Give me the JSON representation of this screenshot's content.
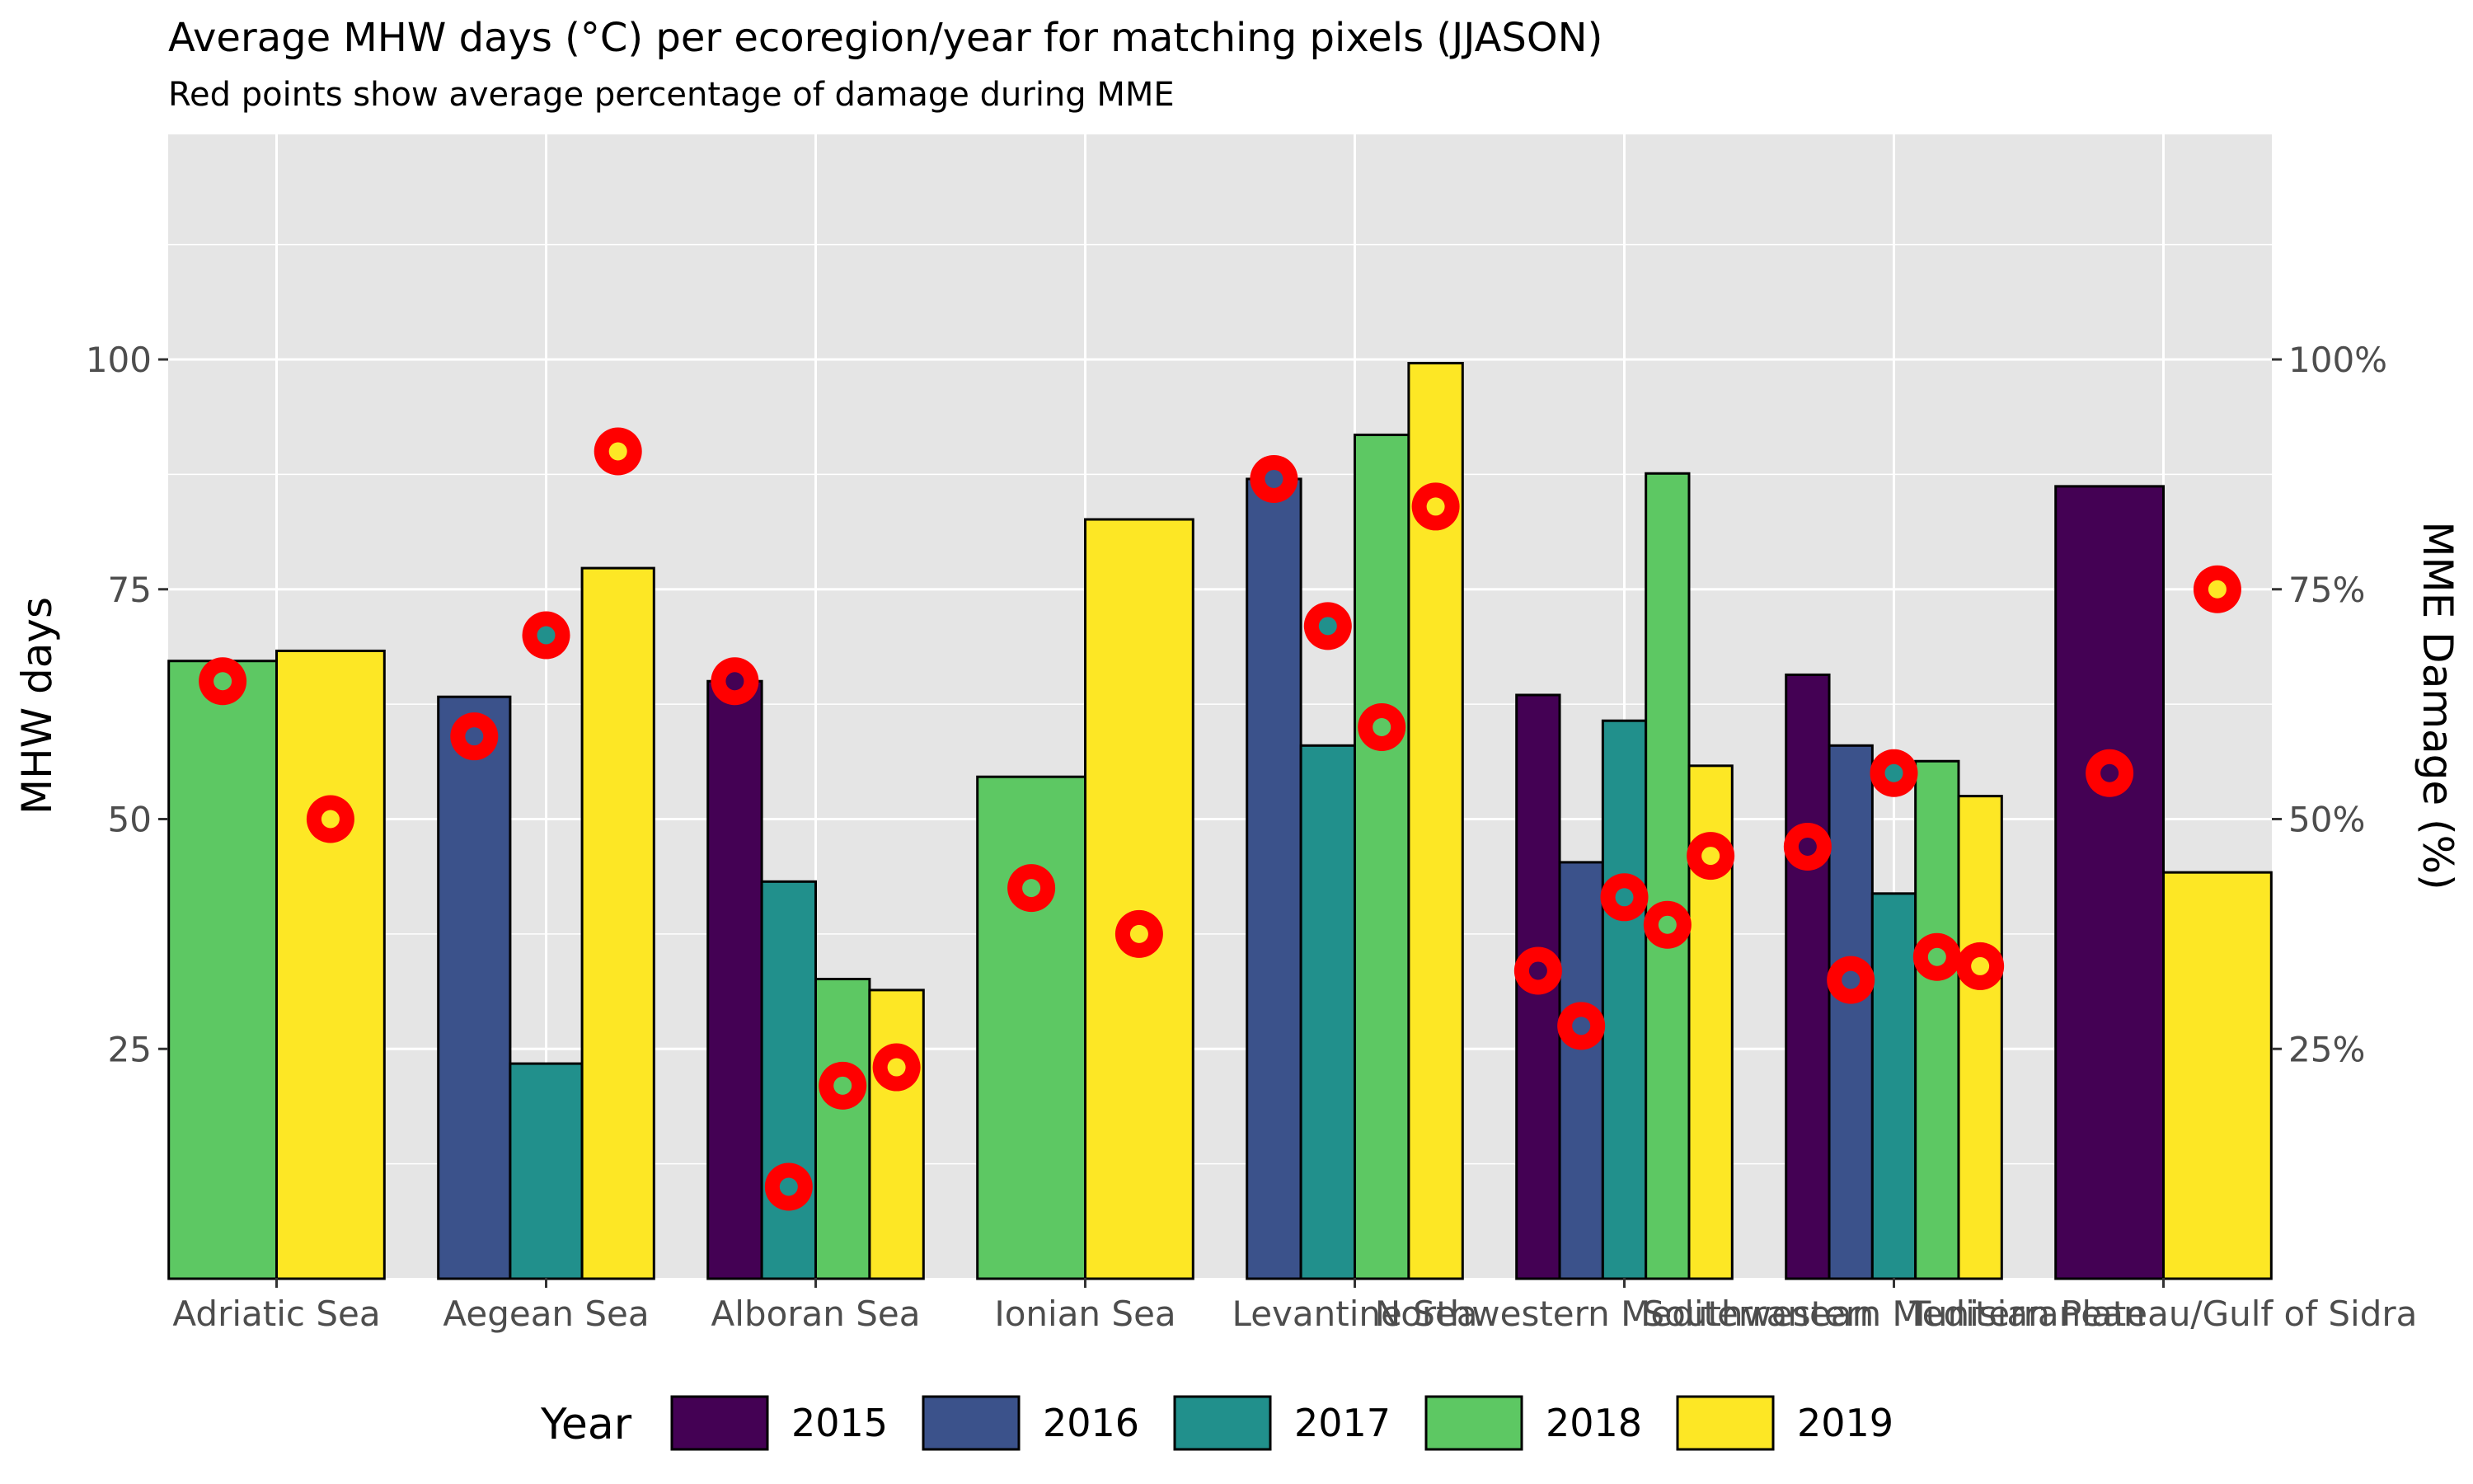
{
  "chart_data": {
    "type": "bar",
    "title": "Average MHW days (°C) per ecoregion/year for matching pixels (JJASON)",
    "subtitle": "Red points show average percentage of damage during MME",
    "ylabel": "MHW days",
    "y2label": "MME Damage (%)",
    "ylim": [
      0,
      125
    ],
    "y2lim": [
      0,
      1.25
    ],
    "yticks": [
      25,
      50,
      75,
      100
    ],
    "y2ticks": [
      "25%",
      "50%",
      "75%",
      "100%"
    ],
    "y2tick_values": [
      0.25,
      0.5,
      0.75,
      1.0
    ],
    "grid": true,
    "legend_position": "bottom",
    "legend_title": "Year",
    "years": [
      "2015",
      "2016",
      "2017",
      "2018",
      "2019"
    ],
    "colors": {
      "2015": "#440154",
      "2016": "#3B528B",
      "2017": "#21908C",
      "2018": "#5DC863",
      "2019": "#FDE725",
      "point_ring": "#FF0000",
      "panel": "#E5E5E5"
    },
    "categories": [
      {
        "name": "Adriatic Sea",
        "bars": [
          {
            "year": "2018",
            "value": 67.2,
            "damage": 0.65
          },
          {
            "year": "2019",
            "value": 68.3,
            "damage": 0.5
          }
        ]
      },
      {
        "name": "Aegean Sea",
        "bars": [
          {
            "year": "2016",
            "value": 63.3,
            "damage": 0.59
          },
          {
            "year": "2017",
            "value": 23.4,
            "damage": 0.7
          },
          {
            "year": "2019",
            "value": 77.3,
            "damage": 0.9
          }
        ]
      },
      {
        "name": "Alboran Sea",
        "bars": [
          {
            "year": "2015",
            "value": 65.0,
            "damage": 0.65
          },
          {
            "year": "2017",
            "value": 43.2,
            "damage": 0.1
          },
          {
            "year": "2018",
            "value": 32.6,
            "damage": 0.21
          },
          {
            "year": "2019",
            "value": 31.4,
            "damage": 0.23
          }
        ]
      },
      {
        "name": "Ionian Sea",
        "bars": [
          {
            "year": "2018",
            "value": 54.6,
            "damage": 0.425
          },
          {
            "year": "2019",
            "value": 82.6,
            "damage": 0.375
          }
        ]
      },
      {
        "name": "Levantine Sea",
        "bars": [
          {
            "year": "2016",
            "value": 87.0,
            "damage": 0.87
          },
          {
            "year": "2017",
            "value": 58.0,
            "damage": 0.71
          },
          {
            "year": "2018",
            "value": 91.8,
            "damage": 0.6
          },
          {
            "year": "2019",
            "value": 99.6,
            "damage": 0.84
          }
        ]
      },
      {
        "name": "Northwestern Mediterranean",
        "bars": [
          {
            "year": "2015",
            "value": 63.5,
            "damage": 0.335
          },
          {
            "year": "2016",
            "value": 45.3,
            "damage": 0.275
          },
          {
            "year": "2017",
            "value": 60.7,
            "damage": 0.415
          },
          {
            "year": "2018",
            "value": 87.6,
            "damage": 0.385
          },
          {
            "year": "2019",
            "value": 55.8,
            "damage": 0.46
          }
        ]
      },
      {
        "name": "Southwestern Mediterranean",
        "bars": [
          {
            "year": "2015",
            "value": 65.7,
            "damage": 0.47
          },
          {
            "year": "2016",
            "value": 58.0,
            "damage": 0.325
          },
          {
            "year": "2017",
            "value": 41.9,
            "damage": 0.55
          },
          {
            "year": "2018",
            "value": 56.3,
            "damage": 0.35
          },
          {
            "year": "2019",
            "value": 52.5,
            "damage": 0.34
          }
        ]
      },
      {
        "name": "Tunisian Plateau/Gulf of Sidra",
        "bars": [
          {
            "year": "2015",
            "value": 86.2,
            "damage": 0.55
          },
          {
            "year": "2019",
            "value": 44.2,
            "damage": 0.75
          }
        ]
      }
    ]
  }
}
